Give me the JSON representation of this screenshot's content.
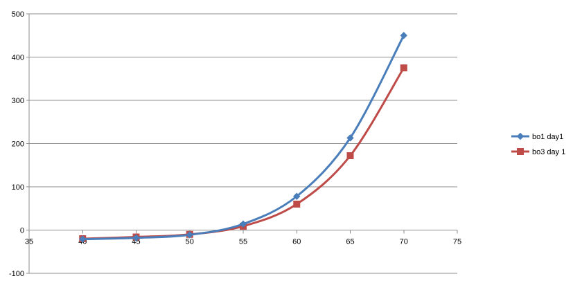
{
  "chart_data": {
    "type": "scatter",
    "title": "",
    "xlabel": "",
    "ylabel": "",
    "xlim": [
      35,
      75
    ],
    "ylim": [
      -100,
      500
    ],
    "x_ticks": [
      35,
      40,
      45,
      50,
      55,
      60,
      65,
      70,
      75
    ],
    "y_ticks": [
      -100,
      0,
      100,
      200,
      300,
      400,
      500
    ],
    "grid": "horizontal",
    "legend_position": "right",
    "smooth_lines": true,
    "x": [
      40,
      45,
      50,
      55,
      60,
      65,
      70
    ],
    "series": [
      {
        "name": "bo1 day1",
        "marker": "diamond",
        "color": "#4a7ebb",
        "values": [
          -21,
          -18,
          -11,
          14,
          78,
          213,
          450
        ]
      },
      {
        "name": "bo3 day 1",
        "marker": "square",
        "color": "#be4b48",
        "values": [
          -20,
          -16,
          -10,
          9,
          60,
          172,
          375
        ]
      }
    ]
  }
}
